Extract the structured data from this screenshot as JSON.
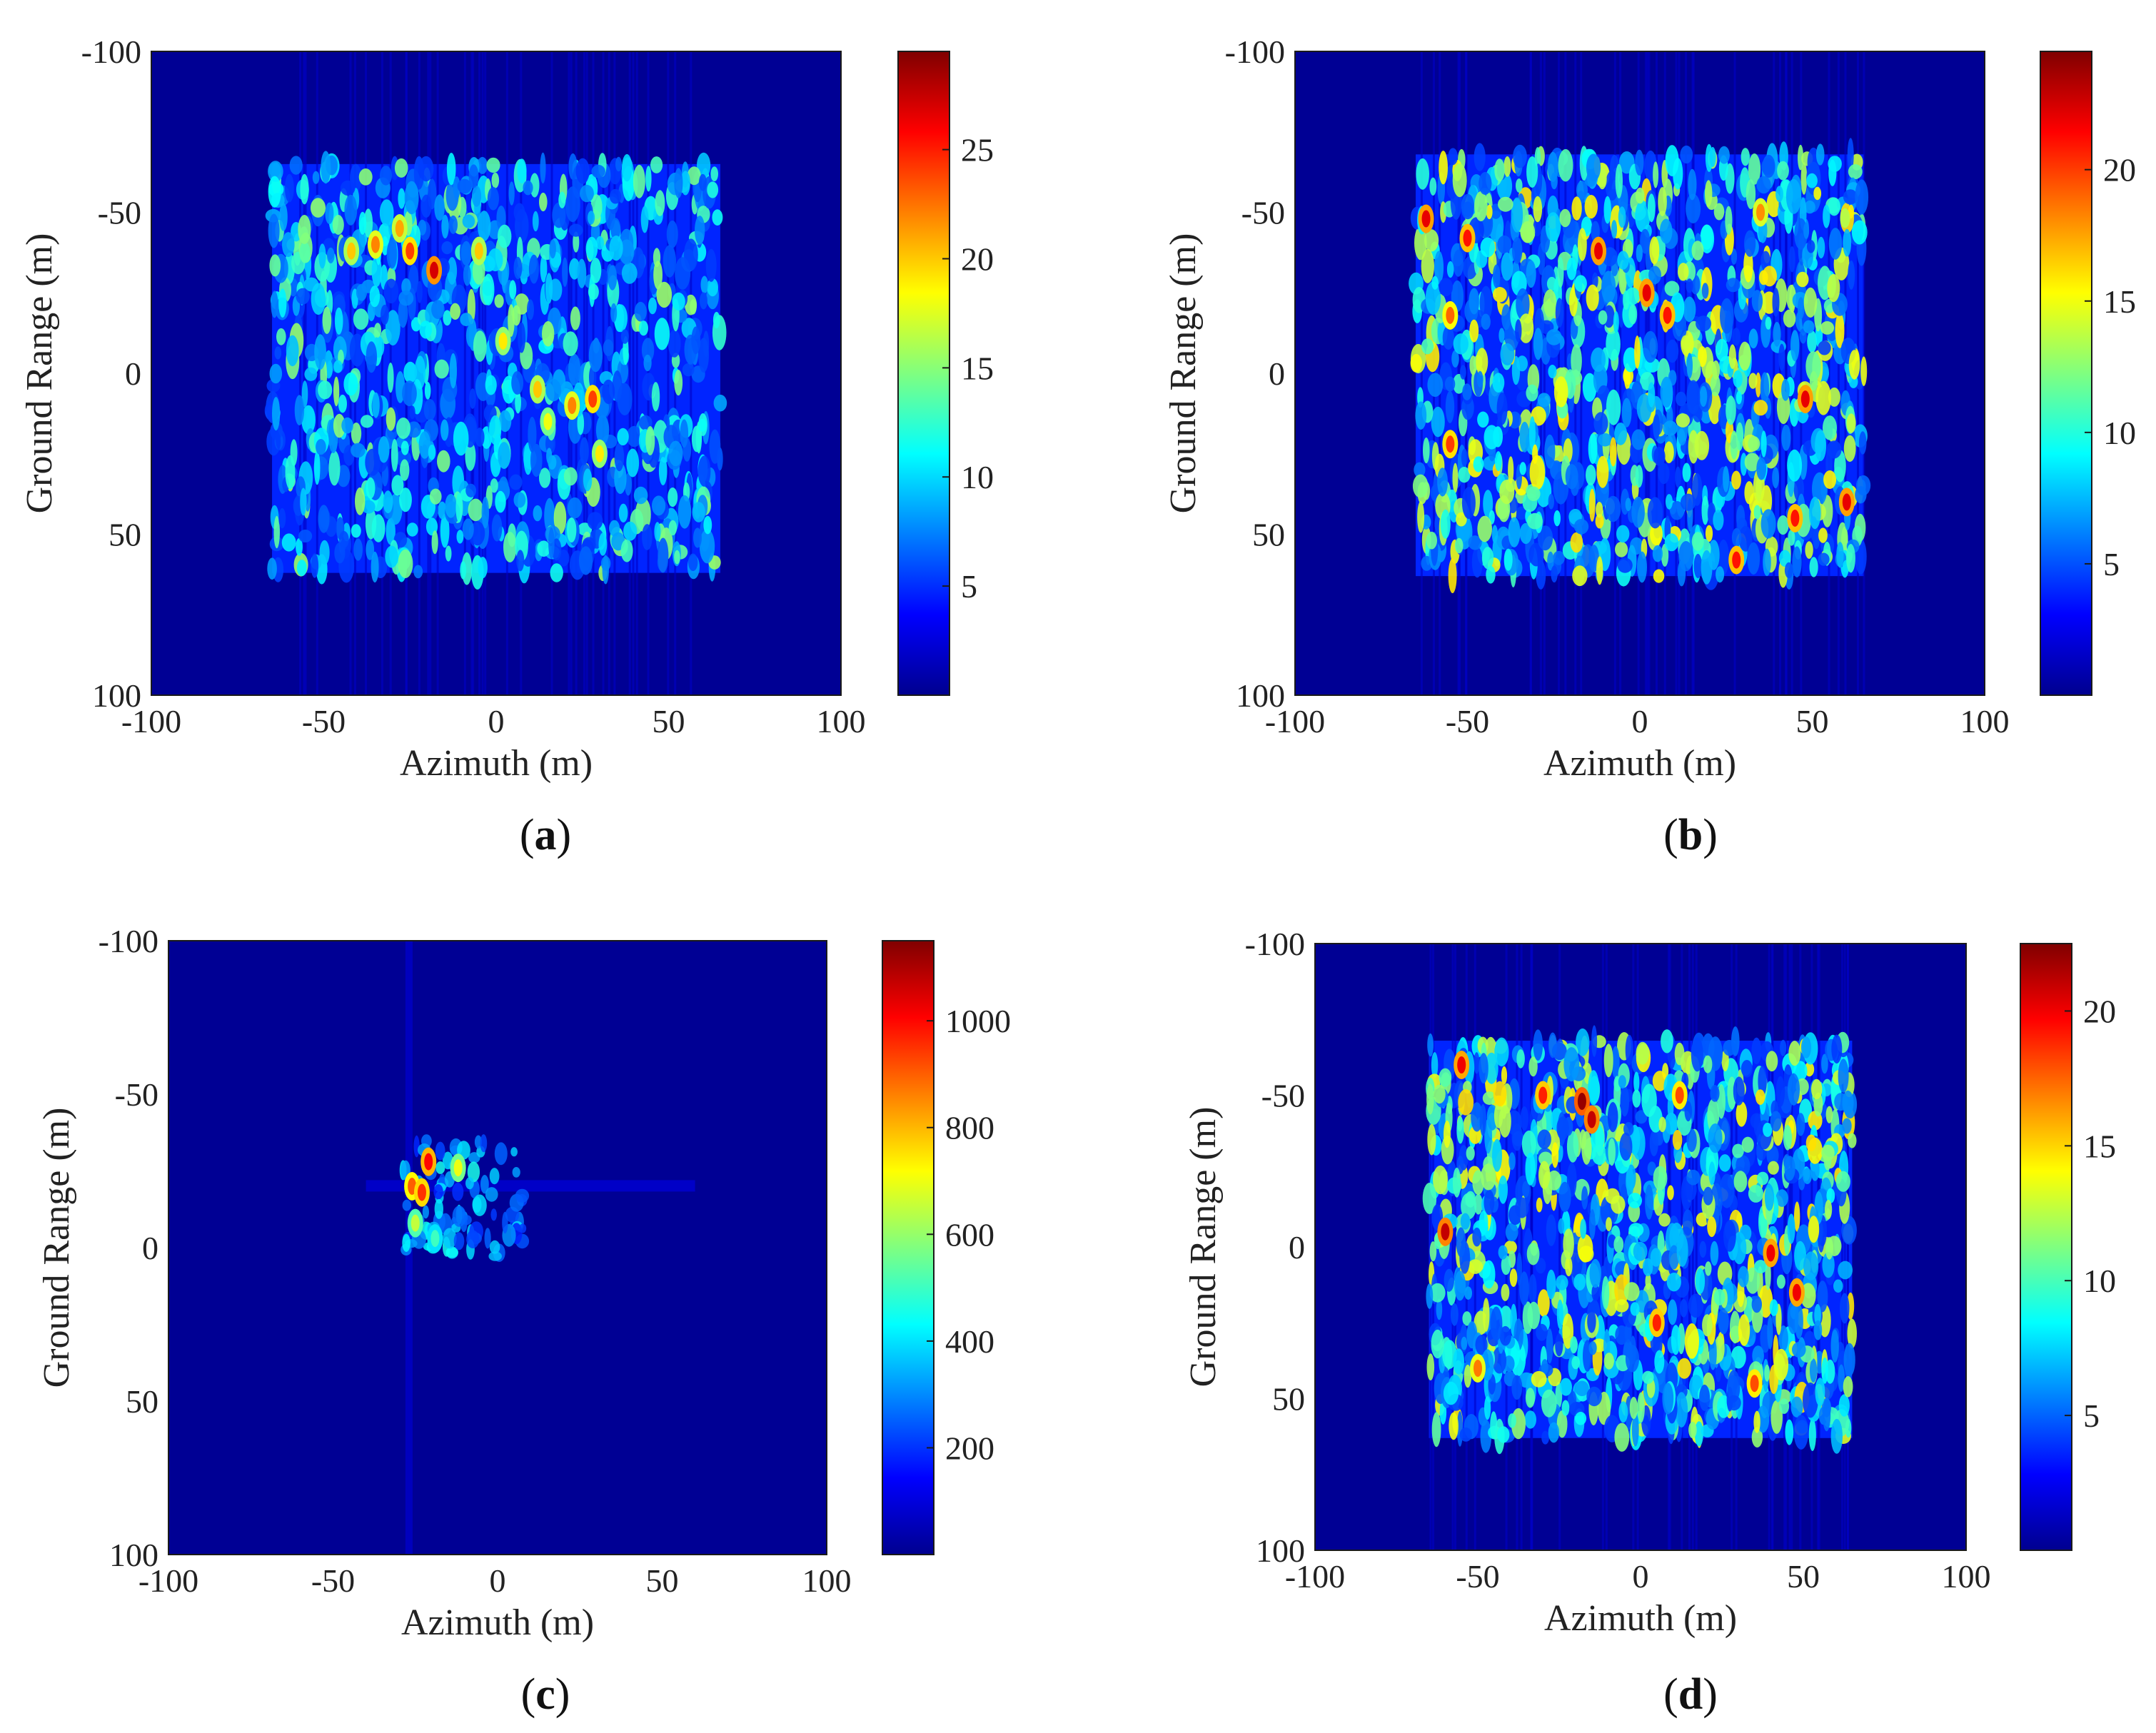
{
  "figure": {
    "panels": [
      {
        "caption_letter": "a"
      },
      {
        "caption_letter": "b"
      },
      {
        "caption_letter": "c"
      },
      {
        "caption_letter": "d"
      }
    ]
  },
  "chart_data": [
    {
      "type": "heatmap",
      "panel": "a",
      "xlabel": "Azimuth (m)",
      "ylabel": "Ground Range (m)",
      "xlim": [
        -100,
        100
      ],
      "ylim": [
        -100,
        100
      ],
      "y_axis_reversed": true,
      "x_ticks": [
        -100,
        -50,
        0,
        50,
        100
      ],
      "y_ticks": [
        -100,
        -50,
        0,
        50,
        100
      ],
      "colormap": "jet",
      "colorbar_ticks": [
        5,
        10,
        15,
        20,
        25
      ],
      "colorbar_range": [
        0,
        29.5
      ],
      "scene_extent": {
        "azimuth": [
          -65,
          65
        ],
        "ground_range": [
          -65,
          62
        ]
      },
      "hotspots": [
        {
          "x": -35,
          "y": -40,
          "v": 22
        },
        {
          "x": -25,
          "y": -38,
          "v": 24
        },
        {
          "x": -18,
          "y": -32,
          "v": 27
        },
        {
          "x": -42,
          "y": -38,
          "v": 20
        },
        {
          "x": -28,
          "y": -45,
          "v": 21
        },
        {
          "x": -5,
          "y": -38,
          "v": 20
        },
        {
          "x": 2,
          "y": -10,
          "v": 19
        },
        {
          "x": 12,
          "y": 5,
          "v": 20
        },
        {
          "x": 22,
          "y": 10,
          "v": 22
        },
        {
          "x": 28,
          "y": 8,
          "v": 24
        },
        {
          "x": 15,
          "y": 15,
          "v": 18
        },
        {
          "x": 30,
          "y": 25,
          "v": 19
        }
      ]
    },
    {
      "type": "heatmap",
      "panel": "b",
      "xlabel": "Azimuth (m)",
      "ylabel": "Ground Range (m)",
      "xlim": [
        -100,
        100
      ],
      "ylim": [
        -100,
        100
      ],
      "y_axis_reversed": true,
      "x_ticks": [
        -100,
        -50,
        0,
        50,
        100
      ],
      "y_ticks": [
        -100,
        -50,
        0,
        50,
        100
      ],
      "colormap": "jet",
      "colorbar_ticks": [
        5,
        10,
        15,
        20
      ],
      "colorbar_range": [
        0,
        24.5
      ],
      "scene_extent": {
        "azimuth": [
          -65,
          65
        ],
        "ground_range": [
          -68,
          63
        ]
      },
      "hotspots": [
        {
          "x": -62,
          "y": -48,
          "v": 22
        },
        {
          "x": -50,
          "y": -42,
          "v": 21
        },
        {
          "x": -12,
          "y": -38,
          "v": 22
        },
        {
          "x": 2,
          "y": -25,
          "v": 22
        },
        {
          "x": 8,
          "y": -18,
          "v": 21
        },
        {
          "x": -55,
          "y": -18,
          "v": 19
        },
        {
          "x": 48,
          "y": 8,
          "v": 22
        },
        {
          "x": 45,
          "y": 45,
          "v": 21
        },
        {
          "x": 60,
          "y": 40,
          "v": 22
        },
        {
          "x": -55,
          "y": 22,
          "v": 20
        },
        {
          "x": 28,
          "y": 58,
          "v": 21
        },
        {
          "x": 35,
          "y": -50,
          "v": 18
        }
      ]
    },
    {
      "type": "heatmap",
      "panel": "c",
      "xlabel": "Azimuth (m)",
      "ylabel": "Ground Range (m)",
      "xlim": [
        -100,
        100
      ],
      "ylim": [
        -100,
        100
      ],
      "y_axis_reversed": true,
      "x_ticks": [
        -100,
        -50,
        0,
        50,
        100
      ],
      "y_ticks": [
        -100,
        -50,
        0,
        50,
        100
      ],
      "colormap": "jet",
      "colorbar_ticks": [
        200,
        400,
        600,
        800,
        1000
      ],
      "colorbar_range": [
        0,
        1150
      ],
      "scene_extent": {
        "azimuth": [
          -30,
          8
        ],
        "ground_range": [
          -35,
          3
        ]
      },
      "hotspots": [
        {
          "x": -21,
          "y": -28,
          "v": 1000
        },
        {
          "x": -26,
          "y": -20,
          "v": 900
        },
        {
          "x": -23,
          "y": -18,
          "v": 950
        },
        {
          "x": -12,
          "y": -26,
          "v": 700
        },
        {
          "x": -25,
          "y": -8,
          "v": 650
        },
        {
          "x": -19,
          "y": -3,
          "v": 500
        }
      ]
    },
    {
      "type": "heatmap",
      "panel": "d",
      "xlabel": "Azimuth (m)",
      "ylabel": "Ground Range (m)",
      "xlim": [
        -100,
        100
      ],
      "ylim": [
        -100,
        100
      ],
      "y_axis_reversed": true,
      "x_ticks": [
        -100,
        -50,
        0,
        50,
        100
      ],
      "y_ticks": [
        -100,
        -50,
        0,
        50,
        100
      ],
      "colormap": "jet",
      "colorbar_ticks": [
        5,
        10,
        15,
        20
      ],
      "colorbar_range": [
        0,
        22.5
      ],
      "scene_extent": {
        "azimuth": [
          -65,
          65
        ],
        "ground_range": [
          -68,
          63
        ]
      },
      "hotspots": [
        {
          "x": -18,
          "y": -48,
          "v": 22
        },
        {
          "x": -15,
          "y": -42,
          "v": 21
        },
        {
          "x": -55,
          "y": -60,
          "v": 20
        },
        {
          "x": -60,
          "y": -5,
          "v": 21
        },
        {
          "x": 40,
          "y": 2,
          "v": 20
        },
        {
          "x": 5,
          "y": 25,
          "v": 19
        },
        {
          "x": 48,
          "y": 15,
          "v": 20
        },
        {
          "x": -30,
          "y": -50,
          "v": 19
        },
        {
          "x": 12,
          "y": -50,
          "v": 18
        },
        {
          "x": -50,
          "y": 40,
          "v": 17
        },
        {
          "x": 35,
          "y": 45,
          "v": 18
        }
      ]
    }
  ]
}
